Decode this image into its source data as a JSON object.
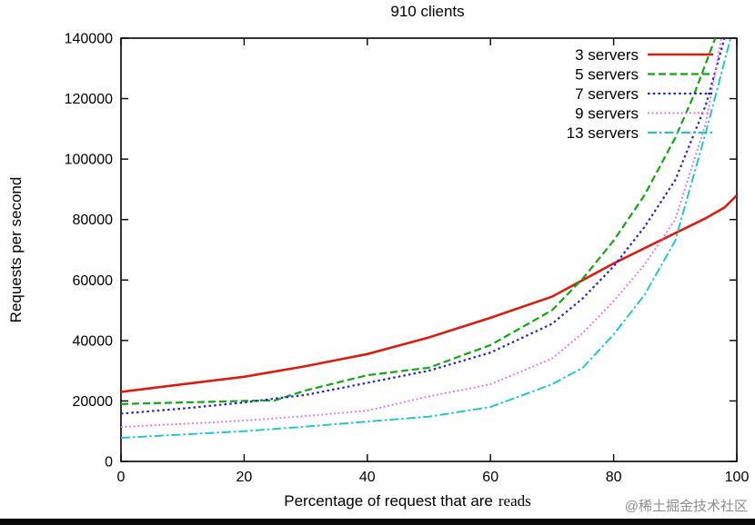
{
  "watermark": {
    "text": "@稀土掘金技术社区",
    "color": "#8c8c8c"
  },
  "chart_data": {
    "type": "line",
    "title": "910 clients",
    "xlabel": "Percentage of request that are reads",
    "xlabel_main": "Percentage of request that are",
    "xlabel_emph": "reads",
    "ylabel": "Requests per second",
    "xlim": [
      0,
      100
    ],
    "ylim": [
      0,
      140000
    ],
    "xticks": [
      0,
      20,
      40,
      60,
      80,
      100
    ],
    "yticks": [
      0,
      20000,
      40000,
      60000,
      80000,
      100000,
      120000,
      140000
    ],
    "grid": false,
    "legend_position": "top-right-inside",
    "series": [
      {
        "name": "3 servers",
        "color": "#d81e10",
        "style": "solid",
        "x": [
          0,
          10,
          20,
          30,
          40,
          50,
          60,
          70,
          75,
          80,
          85,
          90,
          95,
          98,
          100
        ],
        "y": [
          23000,
          25500,
          28000,
          31500,
          35500,
          41000,
          47500,
          54500,
          60000,
          65500,
          70500,
          75500,
          80500,
          84000,
          88000
        ]
      },
      {
        "name": "5 servers",
        "color": "#10a810",
        "style": "dashed",
        "x": [
          0,
          10,
          20,
          25,
          30,
          40,
          50,
          60,
          70,
          75,
          80,
          85,
          90,
          93,
          96.5
        ],
        "y": [
          19000,
          19500,
          20000,
          20200,
          23500,
          28500,
          31000,
          38500,
          50000,
          60500,
          73000,
          88000,
          107000,
          121000,
          140000
        ]
      },
      {
        "name": "7 servers",
        "color": "#2222cc",
        "style": "dotted",
        "x": [
          0,
          10,
          20,
          25,
          30,
          40,
          50,
          60,
          70,
          75,
          80,
          85,
          90,
          95,
          98
        ],
        "y": [
          15800,
          17500,
          19500,
          20800,
          22000,
          26000,
          30000,
          36000,
          45500,
          54000,
          64500,
          77500,
          93000,
          118000,
          140000
        ]
      },
      {
        "name": "9 servers",
        "color": "#ee66ee",
        "style": "finedot",
        "x": [
          0,
          10,
          20,
          30,
          40,
          50,
          60,
          70,
          75,
          80,
          85,
          90,
          95,
          97.5
        ],
        "y": [
          11400,
          12400,
          13500,
          15000,
          16800,
          21500,
          25500,
          34000,
          42500,
          53000,
          65000,
          80000,
          112000,
          140000
        ]
      },
      {
        "name": "13 servers",
        "color": "#16c8c8",
        "style": "dashdot",
        "x": [
          0,
          10,
          20,
          30,
          40,
          50,
          60,
          70,
          75,
          80,
          85,
          90,
          95,
          99
        ],
        "y": [
          7800,
          8900,
          10000,
          11500,
          13200,
          14800,
          18000,
          25500,
          31000,
          42000,
          55000,
          73000,
          109000,
          140000
        ]
      }
    ]
  }
}
